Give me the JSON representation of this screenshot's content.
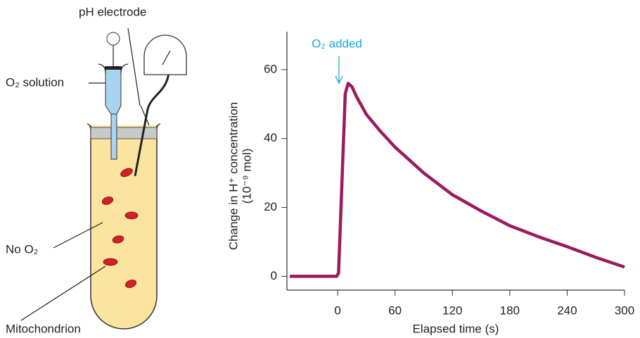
{
  "diagram": {
    "labels": {
      "electrode": "pH electrode",
      "solution": "O₂ solution",
      "medium": "No O₂",
      "organelle": "Mitochondrion"
    }
  },
  "chart_data": {
    "type": "line",
    "x_label": "Elapsed time (s)",
    "y_label": [
      "Change in H⁺ concentration",
      "(10⁻⁹ mol)"
    ],
    "annotation": "O₂ added",
    "annotation_color": "#1aa7dc",
    "x": [
      -50,
      -1,
      1,
      8,
      11,
      15,
      20,
      30,
      45,
      60,
      90,
      120,
      150,
      180,
      210,
      240,
      270,
      300
    ],
    "values": [
      0,
      0,
      1,
      53,
      56,
      55,
      52,
      47,
      42,
      37.5,
      30,
      23.7,
      19,
      14.7,
      11.5,
      8.6,
      5.5,
      2.7
    ],
    "color": "#9b1b5f",
    "xlim": [
      -53,
      300
    ],
    "xticks": [
      0,
      60,
      120,
      180,
      240,
      300
    ],
    "ylim": [
      -4,
      71
    ],
    "yticks": [
      0,
      20,
      40,
      60
    ]
  }
}
